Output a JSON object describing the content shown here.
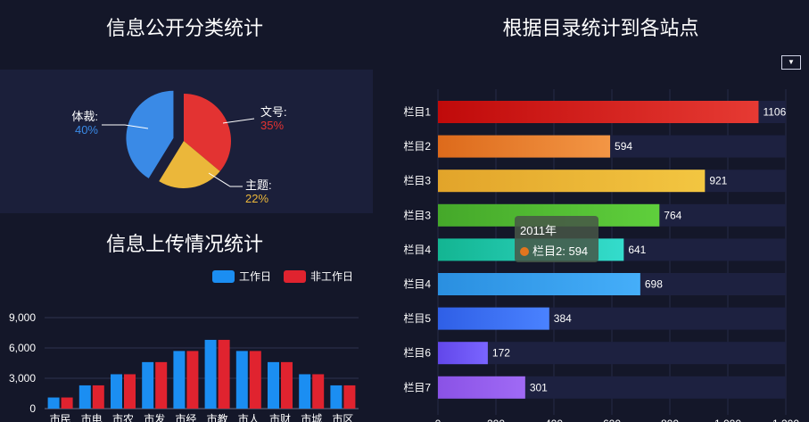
{
  "titles": {
    "pie": "信息公开分类统计",
    "upload": "信息上传情况统计",
    "bar": "根据目录统计到各站点"
  },
  "dropdown_icon": "chevron-down-icon",
  "tooltip": {
    "header": "2011年",
    "series": "栏目2",
    "value": "594",
    "marker_color": "#e2751e"
  },
  "chart_data": [
    {
      "type": "pie",
      "title": "信息公开分类统计",
      "slices": [
        {
          "label": "文号:",
          "percent": "35%",
          "value": 35,
          "color": "#e33332",
          "offset": false
        },
        {
          "label": "主题:",
          "percent": "22%",
          "value": 22,
          "color": "#ebb73a",
          "offset": false
        },
        {
          "label": "体裁:",
          "percent": "40%",
          "value": 40,
          "color": "#3a8ae6",
          "offset": true
        }
      ]
    },
    {
      "type": "bar",
      "title": "信息上传情况统计",
      "legend": {
        "placement": "top-right"
      },
      "categories": [
        "市民",
        "市电",
        "市农",
        "市发",
        "市经",
        "市教",
        "市人",
        "市财",
        "市城",
        "市区"
      ],
      "series": [
        {
          "name": "工作日",
          "color": "#1b8ef2",
          "values": [
            1100,
            2300,
            3400,
            4600,
            5700,
            6800,
            5700,
            4600,
            3400,
            2300
          ]
        },
        {
          "name": "非工作日",
          "color": "#e0232f",
          "values": [
            1100,
            2300,
            3400,
            4600,
            5700,
            6800,
            5700,
            4600,
            3400,
            2300
          ]
        }
      ],
      "y_ticks": [
        "0",
        "3,000",
        "6,000",
        "9,000"
      ],
      "ylim": [
        0,
        9000
      ],
      "grid": true
    },
    {
      "type": "bar",
      "orientation": "horizontal",
      "title": "根据目录统计到各站点",
      "categories": [
        "栏目1",
        "栏目2",
        "栏目3",
        "栏目3",
        "栏目4",
        "栏目4",
        "栏目5",
        "栏目6",
        "栏目7"
      ],
      "values": [
        1106,
        594,
        921,
        764,
        641,
        698,
        384,
        172,
        301
      ],
      "colors": [
        [
          "#c00a0a",
          "#e63a33"
        ],
        [
          "#dd6a1b",
          "#f39645"
        ],
        [
          "#e2a42a",
          "#f3c641"
        ],
        [
          "#45a82a",
          "#5fcf3c"
        ],
        [
          "#13b592",
          "#34dccc"
        ],
        [
          "#2a8fe0",
          "#45aef9"
        ],
        [
          "#2f5fe6",
          "#4a82ff"
        ],
        [
          "#6247ea",
          "#7a65ff"
        ],
        [
          "#8a52e6",
          "#a06af5"
        ]
      ],
      "x_ticks": [
        "0",
        "200",
        "400",
        "600",
        "800",
        "1,000",
        "1,200"
      ],
      "xlim": [
        0,
        1200
      ],
      "grid": true
    }
  ]
}
